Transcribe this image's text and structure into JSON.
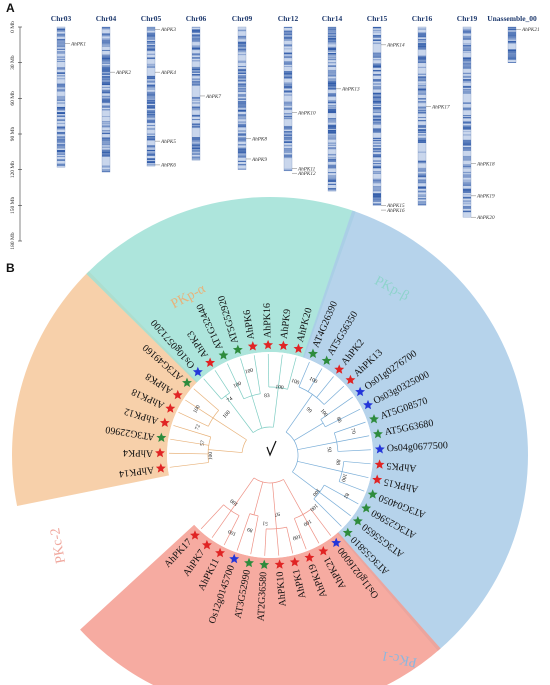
{
  "panelA": {
    "letter": "A",
    "axis_ticks": [
      "0 Mb",
      "30 Mb",
      "60 Mb",
      "90 Mb",
      "120 Mb",
      "150 Mb",
      "180 Mb"
    ],
    "max_mb": 180,
    "chromosomes": [
      {
        "name": "Chr03",
        "length_mb": 118,
        "genes": [
          {
            "label": "AhPK1",
            "pos_mb": 14
          }
        ]
      },
      {
        "name": "Chr04",
        "length_mb": 122,
        "genes": [
          {
            "label": "AhPK2",
            "pos_mb": 38
          }
        ]
      },
      {
        "name": "Chr05",
        "length_mb": 117,
        "genes": [
          {
            "label": "AhPK3",
            "pos_mb": 2
          },
          {
            "label": "AhPK4",
            "pos_mb": 38
          },
          {
            "label": "AhPK5",
            "pos_mb": 96
          },
          {
            "label": "AhPK6",
            "pos_mb": 116
          }
        ]
      },
      {
        "name": "Chr06",
        "length_mb": 112,
        "genes": [
          {
            "label": "AhPK7",
            "pos_mb": 58
          }
        ]
      },
      {
        "name": "Chr09",
        "length_mb": 120,
        "genes": [
          {
            "label": "AhPK8",
            "pos_mb": 94
          },
          {
            "label": "AhPK9",
            "pos_mb": 111
          }
        ]
      },
      {
        "name": "Chr12",
        "length_mb": 121,
        "genes": [
          {
            "label": "AhPK10",
            "pos_mb": 72
          },
          {
            "label": "AhPK11",
            "pos_mb": 119
          },
          {
            "label": "AhPK12",
            "pos_mb": 123
          }
        ]
      },
      {
        "name": "Chr14",
        "length_mb": 138,
        "genes": [
          {
            "label": "AhPK13",
            "pos_mb": 52
          }
        ]
      },
      {
        "name": "Chr15",
        "length_mb": 150,
        "genes": [
          {
            "label": "AhPK14",
            "pos_mb": 15
          },
          {
            "label": "AhPK15",
            "pos_mb": 150
          },
          {
            "label": "AhPK16",
            "pos_mb": 154
          }
        ]
      },
      {
        "name": "Chr16",
        "length_mb": 150,
        "genes": [
          {
            "label": "AhPK17",
            "pos_mb": 67
          }
        ]
      },
      {
        "name": "Chr19",
        "length_mb": 160,
        "genes": [
          {
            "label": "AhPK18",
            "pos_mb": 115
          },
          {
            "label": "AhPK19",
            "pos_mb": 142
          },
          {
            "label": "AhPK20",
            "pos_mb": 160
          }
        ]
      },
      {
        "name": "Unassemble_00",
        "length_mb": 30,
        "genes": [
          {
            "label": "AhPK21",
            "pos_mb": 2
          }
        ]
      }
    ],
    "colors": {
      "band_dark": "#2f5aa8",
      "band_light": "#c9d6ec",
      "chr_name": "#1f3a6e"
    }
  },
  "panelB": {
    "letter": "B",
    "clades": [
      {
        "name": "PKp-α",
        "color": "#f6c89b",
        "text_color": "#e8b27a"
      },
      {
        "name": "PKp-β",
        "color": "#9fe0d6",
        "text_color": "#8fd3cc"
      },
      {
        "name": "PKc-1",
        "color": "#a9cbe8",
        "text_color": "#8cb7de"
      },
      {
        "name": "PKc-2",
        "color": "#f59c90",
        "text_color": "#f0a79d"
      }
    ],
    "star_colors": {
      "arabidopsis": "#2e8b3d",
      "peanut": "#e02424",
      "rice": "#2436d9"
    },
    "leaves": [
      {
        "label": "AhPK14",
        "clade": 0,
        "sp": "peanut"
      },
      {
        "label": "AhPK4",
        "clade": 0,
        "sp": "peanut"
      },
      {
        "label": "AT3G22960",
        "clade": 0,
        "sp": "arabidopsis"
      },
      {
        "label": "AhPK12",
        "clade": 0,
        "sp": "peanut"
      },
      {
        "label": "AhPK18",
        "clade": 0,
        "sp": "peanut"
      },
      {
        "label": "AhPK8",
        "clade": 0,
        "sp": "peanut"
      },
      {
        "label": "AT3G49160",
        "clade": 0,
        "sp": "arabidopsis"
      },
      {
        "label": "Os10g0571200",
        "clade": 1,
        "sp": "rice"
      },
      {
        "label": "AhPK3",
        "clade": 1,
        "sp": "peanut"
      },
      {
        "label": "AT1G32440",
        "clade": 1,
        "sp": "arabidopsis"
      },
      {
        "label": "AT5G52920",
        "clade": 1,
        "sp": "arabidopsis"
      },
      {
        "label": "AhPK6",
        "clade": 1,
        "sp": "peanut"
      },
      {
        "label": "AhPK16",
        "clade": 1,
        "sp": "peanut"
      },
      {
        "label": "AhPK9",
        "clade": 1,
        "sp": "peanut"
      },
      {
        "label": "AhPK20",
        "clade": 1,
        "sp": "peanut"
      },
      {
        "label": "AT4G26390",
        "clade": 2,
        "sp": "arabidopsis"
      },
      {
        "label": "AT5G56350",
        "clade": 2,
        "sp": "arabidopsis"
      },
      {
        "label": "AhPK2",
        "clade": 2,
        "sp": "peanut"
      },
      {
        "label": "AhPK13",
        "clade": 2,
        "sp": "peanut"
      },
      {
        "label": "Os01g0276700",
        "clade": 2,
        "sp": "rice"
      },
      {
        "label": "Os03g0325000",
        "clade": 2,
        "sp": "rice"
      },
      {
        "label": "AT5G08570",
        "clade": 2,
        "sp": "arabidopsis"
      },
      {
        "label": "AT5G63680",
        "clade": 2,
        "sp": "arabidopsis"
      },
      {
        "label": "Os04g0677500",
        "clade": 2,
        "sp": "rice"
      },
      {
        "label": "AhPK5",
        "clade": 2,
        "sp": "peanut"
      },
      {
        "label": "AhPK15",
        "clade": 2,
        "sp": "peanut"
      },
      {
        "label": "AT3G04050",
        "clade": 2,
        "sp": "arabidopsis"
      },
      {
        "label": "AT3G25960",
        "clade": 2,
        "sp": "arabidopsis"
      },
      {
        "label": "AT3G55650",
        "clade": 2,
        "sp": "arabidopsis"
      },
      {
        "label": "AT3G55810",
        "clade": 2,
        "sp": "arabidopsis"
      },
      {
        "label": "Os11g0216000",
        "clade": 3,
        "sp": "rice"
      },
      {
        "label": "AhPK21",
        "clade": 3,
        "sp": "peanut"
      },
      {
        "label": "AhPK19",
        "clade": 3,
        "sp": "peanut"
      },
      {
        "label": "AhPK1",
        "clade": 3,
        "sp": "peanut"
      },
      {
        "label": "AhPK10",
        "clade": 3,
        "sp": "peanut"
      },
      {
        "label": "AT2G36580",
        "clade": 3,
        "sp": "arabidopsis"
      },
      {
        "label": "AT3G52990",
        "clade": 3,
        "sp": "arabidopsis"
      },
      {
        "label": "Os12g0145700",
        "clade": 3,
        "sp": "rice"
      },
      {
        "label": "AhPK11",
        "clade": 3,
        "sp": "peanut"
      },
      {
        "label": "AhPK7",
        "clade": 3,
        "sp": "peanut"
      },
      {
        "label": "AhPK17",
        "clade": 3,
        "sp": "peanut"
      }
    ],
    "bootstrap": [
      "100",
      "57",
      "72",
      "100",
      "100",
      "74",
      "100",
      "100",
      "83",
      "100",
      "100",
      "100",
      "99",
      "100",
      "86",
      "70",
      "92",
      "88",
      "100",
      "82",
      "100",
      "100",
      "100",
      "100",
      "97",
      "51",
      "89",
      "100",
      "100"
    ]
  }
}
